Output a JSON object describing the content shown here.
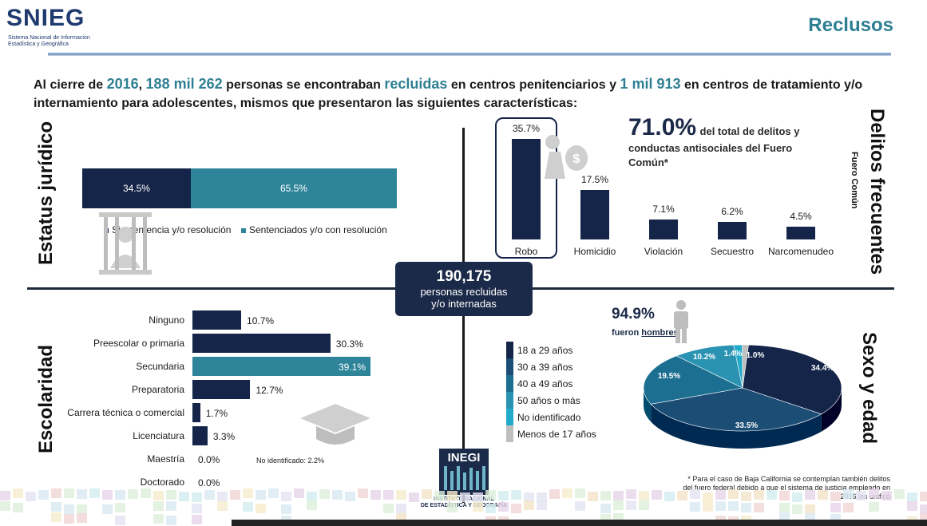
{
  "header": {
    "logo_text": "SNIEG",
    "logo_sub_1": "Sistema Nacional de Información",
    "logo_sub_2": "Estadística y Geográfica",
    "title": "Reclusos"
  },
  "intro": {
    "p1": "Al cierre de ",
    "year": "2016",
    "p2": ", ",
    "count1": "188 mil 262",
    "p3": " personas se encontraban ",
    "word": "recluidas",
    "p4": " en centros penitenciarios y ",
    "count2": "1 mil 913",
    "p5": " en centros de tratamiento y/o internamiento para adolescentes, mismos que presentaron las siguientes características:"
  },
  "sections": {
    "legal": "Estatus jurídico",
    "crimes": "Delitos frecuentes",
    "crimes_sub": "Fuero Común",
    "school": "Escolaridad",
    "sexage": "Sexo y edad"
  },
  "legal_status": {
    "segments": [
      {
        "label": "Sin sentencia y/o resolución",
        "value": 34.5,
        "text": "34.5%",
        "color": "#15254a"
      },
      {
        "label": "Sentenciados y/o con resolución",
        "value": 65.5,
        "text": "65.5%",
        "color": "#2e8499"
      }
    ]
  },
  "center": {
    "number": "190,175",
    "line1": "personas recluidas",
    "line2": "y/o internadas"
  },
  "crimes_highlight": {
    "pct": "71.0%",
    "text1": "del total de delitos y",
    "text2": "conductas antisociales del Fuero",
    "text3": "Común*"
  },
  "chart_data": [
    {
      "type": "bar",
      "categories": [
        "Robo",
        "Homicidio",
        "Violación",
        "Secuestro",
        "Narcomenudeo"
      ],
      "values": [
        35.7,
        17.5,
        7.1,
        6.2,
        4.5
      ],
      "labels": [
        "35.7%",
        "17.5%",
        "7.1%",
        "6.2%",
        "4.5%"
      ]
    },
    {
      "type": "bar",
      "orientation": "horizontal",
      "categories": [
        "Ninguno",
        "Preescolar o primaria",
        "Secundaria",
        "Preparatoria",
        "Carrera técnica o comercial",
        "Licenciatura",
        "Maestría",
        "Doctorado"
      ],
      "values": [
        10.7,
        30.3,
        39.1,
        12.7,
        1.7,
        3.3,
        0.0,
        0.0
      ],
      "labels": [
        "10.7%",
        "30.3%",
        "39.1%",
        "12.7%",
        "1.7%",
        "3.3%",
        "0.0%",
        "0.0%"
      ],
      "note": "No identificado: 2.2%"
    },
    {
      "type": "pie",
      "categories": [
        "18 a 29 años",
        "30 a 39 años",
        "40 a 49 años",
        "50 años o más",
        "No identificado",
        "Menos de 17 años"
      ],
      "values": [
        34.4,
        33.5,
        19.5,
        10.2,
        1.4,
        1.0
      ],
      "labels": [
        "34.4%",
        "33.5%",
        "19.5%",
        "10.2%",
        "1.4%",
        "1.0%"
      ],
      "colors": [
        "#15254a",
        "#1c4d75",
        "#1d6f91",
        "#2a93b2",
        "#22aacb",
        "#bfbfbf"
      ]
    }
  ],
  "men": {
    "pct": "94.9%",
    "text_a": "fueron ",
    "text_b": "hombres"
  },
  "footnote": "* Para el caso de Baja California se contemplan también delitos del fuero federal debido a que el sistema de justicia empleado en 2016 los unificó",
  "inegi": {
    "logo": "INEGI",
    "line1": "INSTITUTO NACIONAL",
    "line2": "DE ESTADÍSTICA Y GEOGRAFÍA"
  }
}
